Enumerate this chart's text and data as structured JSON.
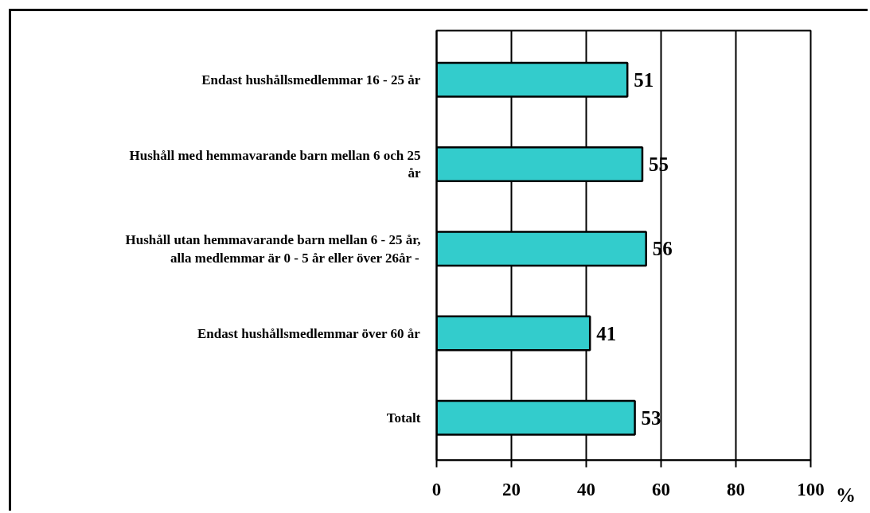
{
  "chart_data": {
    "type": "bar",
    "orientation": "horizontal",
    "categories": [
      "Endast hushållsmedlemmar 16 - 25 år",
      "Hushåll med hemmavarande barn mellan 6 och 25\når",
      "Hushåll utan hemmavarande barn mellan 6 - 25 år,\nalla medlemmar är 0 - 5 år eller över 26år -",
      "Endast hushållsmedlemmar över 60 år",
      "Totalt"
    ],
    "values": [
      51,
      55,
      56,
      41,
      53
    ],
    "color": "#33cccc",
    "xlim": [
      0,
      100
    ],
    "xticks": [
      0,
      20,
      40,
      60,
      80,
      100
    ],
    "xlabel": "%",
    "grid": "x",
    "data_labels": true
  }
}
